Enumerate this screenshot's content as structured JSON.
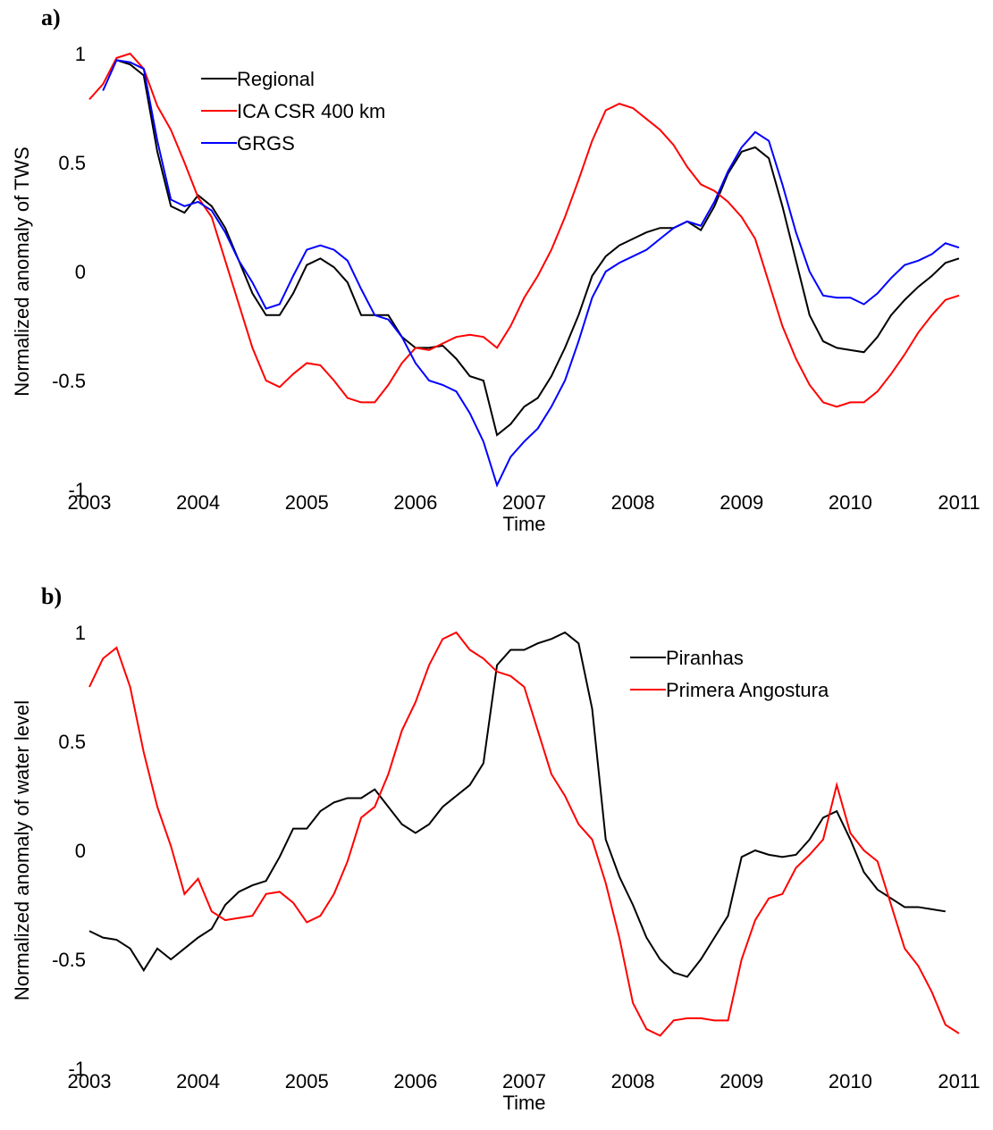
{
  "chart_data": [
    {
      "type": "line",
      "panel_label": "a)",
      "xlabel": "Time",
      "ylabel": "Normalized anomaly of TWS",
      "xlim": [
        2003,
        2011
      ],
      "xticks": [
        2003,
        2004,
        2005,
        2006,
        2007,
        2008,
        2009,
        2010,
        2011
      ],
      "ylim": [
        -1,
        1
      ],
      "yticks": [
        -1,
        -0.5,
        0,
        0.5,
        1
      ],
      "grid": false,
      "legend_position": "upper left",
      "x": [
        2003,
        2003.125,
        2003.25,
        2003.375,
        2003.5,
        2003.625,
        2003.75,
        2003.875,
        2004,
        2004.125,
        2004.25,
        2004.375,
        2004.5,
        2004.625,
        2004.75,
        2004.875,
        2005,
        2005.125,
        2005.25,
        2005.375,
        2005.5,
        2005.625,
        2005.75,
        2005.875,
        2006,
        2006.125,
        2006.25,
        2006.375,
        2006.5,
        2006.625,
        2006.75,
        2006.875,
        2007,
        2007.125,
        2007.25,
        2007.375,
        2007.5,
        2007.625,
        2007.75,
        2007.875,
        2008,
        2008.125,
        2008.25,
        2008.375,
        2008.5,
        2008.625,
        2008.75,
        2008.875,
        2009,
        2009.125,
        2009.25,
        2009.375,
        2009.5,
        2009.625,
        2009.75,
        2009.875,
        2010,
        2010.125,
        2010.25,
        2010.375,
        2010.5,
        2010.625,
        2010.75,
        2010.875,
        2011
      ],
      "series": [
        {
          "name": "Regional",
          "color": "#000000",
          "values": [
            null,
            null,
            0.97,
            0.95,
            0.9,
            0.55,
            0.3,
            0.27,
            0.35,
            0.3,
            0.2,
            0.05,
            -0.1,
            -0.2,
            -0.2,
            -0.1,
            0.03,
            0.06,
            0.02,
            -0.05,
            -0.2,
            -0.2,
            -0.2,
            -0.3,
            -0.35,
            -0.35,
            -0.34,
            -0.4,
            -0.48,
            -0.5,
            -0.75,
            -0.7,
            -0.62,
            -0.58,
            -0.48,
            -0.35,
            -0.2,
            -0.02,
            0.07,
            0.12,
            0.15,
            0.18,
            0.2,
            0.2,
            0.23,
            0.19,
            0.3,
            0.45,
            0.55,
            0.57,
            0.52,
            0.3,
            0.05,
            -0.2,
            -0.32,
            -0.35,
            -0.36,
            -0.37,
            -0.3,
            -0.2,
            -0.13,
            -0.07,
            -0.02,
            0.04,
            0.06
          ]
        },
        {
          "name": "ICA CSR 400 km",
          "color": "#ff0000",
          "values": [
            0.79,
            0.86,
            0.98,
            1.0,
            0.93,
            0.76,
            0.65,
            0.5,
            0.34,
            0.25,
            0.05,
            -0.15,
            -0.35,
            -0.5,
            -0.53,
            -0.47,
            -0.42,
            -0.43,
            -0.5,
            -0.58,
            -0.6,
            -0.6,
            -0.52,
            -0.42,
            -0.35,
            -0.36,
            -0.33,
            -0.3,
            -0.29,
            -0.3,
            -0.35,
            -0.25,
            -0.12,
            -0.02,
            0.1,
            0.25,
            0.42,
            0.6,
            0.74,
            0.77,
            0.75,
            0.7,
            0.65,
            0.58,
            0.48,
            0.4,
            0.37,
            0.32,
            0.25,
            0.15,
            -0.05,
            -0.25,
            -0.4,
            -0.52,
            -0.6,
            -0.62,
            -0.6,
            -0.6,
            -0.55,
            -0.47,
            -0.38,
            -0.28,
            -0.2,
            -0.13,
            -0.11
          ]
        },
        {
          "name": "GRGS",
          "color": "#0000ff",
          "values": [
            null,
            0.83,
            0.97,
            0.96,
            0.93,
            0.6,
            0.33,
            0.3,
            0.32,
            0.28,
            0.18,
            0.05,
            -0.05,
            -0.17,
            -0.15,
            -0.02,
            0.1,
            0.12,
            0.1,
            0.05,
            -0.08,
            -0.2,
            -0.22,
            -0.3,
            -0.42,
            -0.5,
            -0.52,
            -0.55,
            -0.65,
            -0.78,
            -0.98,
            -0.85,
            -0.78,
            -0.72,
            -0.62,
            -0.5,
            -0.32,
            -0.12,
            0.0,
            0.04,
            0.07,
            0.1,
            0.15,
            0.2,
            0.23,
            0.21,
            0.32,
            0.46,
            0.57,
            0.64,
            0.6,
            0.4,
            0.18,
            0.0,
            -0.11,
            -0.12,
            -0.12,
            -0.15,
            -0.1,
            -0.03,
            0.03,
            0.05,
            0.08,
            0.13,
            0.11
          ]
        }
      ]
    },
    {
      "type": "line",
      "panel_label": "b)",
      "xlabel": "Time",
      "ylabel": "Normalized anomaly of water level",
      "xlim": [
        2003,
        2011
      ],
      "xticks": [
        2003,
        2004,
        2005,
        2006,
        2007,
        2008,
        2009,
        2010,
        2011
      ],
      "ylim": [
        -1,
        1
      ],
      "yticks": [
        -1,
        -0.5,
        0,
        0.5,
        1
      ],
      "grid": false,
      "legend_position": "upper right",
      "x": [
        2003,
        2003.125,
        2003.25,
        2003.375,
        2003.5,
        2003.625,
        2003.75,
        2003.875,
        2004,
        2004.125,
        2004.25,
        2004.375,
        2004.5,
        2004.625,
        2004.75,
        2004.875,
        2005,
        2005.125,
        2005.25,
        2005.375,
        2005.5,
        2005.625,
        2005.75,
        2005.875,
        2006,
        2006.125,
        2006.25,
        2006.375,
        2006.5,
        2006.625,
        2006.75,
        2006.875,
        2007,
        2007.125,
        2007.25,
        2007.375,
        2007.5,
        2007.625,
        2007.75,
        2007.875,
        2008,
        2008.125,
        2008.25,
        2008.375,
        2008.5,
        2008.625,
        2008.75,
        2008.875,
        2009,
        2009.125,
        2009.25,
        2009.375,
        2009.5,
        2009.625,
        2009.75,
        2009.875,
        2010,
        2010.125,
        2010.25,
        2010.375,
        2010.5,
        2010.625,
        2010.75,
        2010.875,
        2011
      ],
      "series": [
        {
          "name": "Piranhas",
          "color": "#000000",
          "values": [
            -0.37,
            -0.4,
            -0.41,
            -0.45,
            -0.55,
            -0.45,
            -0.5,
            -0.45,
            -0.4,
            -0.36,
            -0.25,
            -0.19,
            -0.16,
            -0.14,
            -0.03,
            0.1,
            0.1,
            0.18,
            0.22,
            0.24,
            0.24,
            0.28,
            0.2,
            0.12,
            0.08,
            0.12,
            0.2,
            0.25,
            0.3,
            0.4,
            0.85,
            0.92,
            0.92,
            0.95,
            0.97,
            1.0,
            0.95,
            0.65,
            0.05,
            -0.12,
            -0.25,
            -0.4,
            -0.5,
            -0.56,
            -0.58,
            -0.5,
            -0.4,
            -0.3,
            -0.03,
            0.0,
            -0.02,
            -0.03,
            -0.02,
            0.05,
            0.15,
            0.18,
            0.05,
            -0.1,
            -0.18,
            -0.22,
            -0.26,
            -0.26,
            -0.27,
            -0.28,
            null
          ]
        },
        {
          "name": "Primera Angostura",
          "color": "#ff0000",
          "values": [
            0.75,
            0.88,
            0.93,
            0.75,
            0.45,
            0.2,
            0.02,
            -0.2,
            -0.13,
            -0.28,
            -0.32,
            -0.31,
            -0.3,
            -0.2,
            -0.19,
            -0.24,
            -0.33,
            -0.3,
            -0.2,
            -0.05,
            0.15,
            0.2,
            0.35,
            0.55,
            0.68,
            0.85,
            0.97,
            1.0,
            0.92,
            0.88,
            0.82,
            0.8,
            0.75,
            0.55,
            0.35,
            0.25,
            0.12,
            0.05,
            -0.15,
            -0.4,
            -0.7,
            -0.82,
            -0.85,
            -0.78,
            -0.77,
            -0.77,
            -0.78,
            -0.78,
            -0.5,
            -0.32,
            -0.22,
            -0.2,
            -0.08,
            -0.02,
            0.05,
            0.3,
            0.08,
            0.0,
            -0.05,
            -0.25,
            -0.45,
            -0.53,
            -0.65,
            -0.8,
            -0.84
          ]
        }
      ]
    }
  ]
}
